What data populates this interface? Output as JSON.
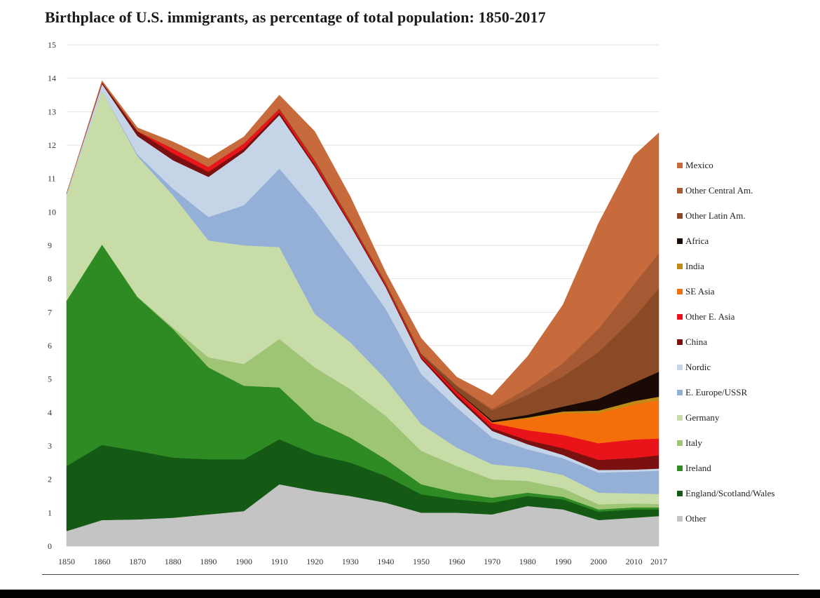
{
  "chart_data": {
    "type": "area",
    "title": "Birthplace of U.S. immigrants, as percentage of total population: 1850-2017",
    "xlabel": "",
    "ylabel": "",
    "x": [
      1850,
      1860,
      1870,
      1880,
      1890,
      1900,
      1910,
      1920,
      1930,
      1940,
      1950,
      1960,
      1970,
      1980,
      1990,
      2000,
      2010,
      2017
    ],
    "x_tick_labels": [
      "1850",
      "1860",
      "1870",
      "1880",
      "1890",
      "1900",
      "1910",
      "1920",
      "1930",
      "1940",
      "1950",
      "1960",
      "1970",
      "1980",
      "1990",
      "2000",
      "2010",
      "2017"
    ],
    "ylim": [
      0,
      15
    ],
    "y_ticks": [
      "0",
      "1",
      "2",
      "3",
      "4",
      "5",
      "6",
      "7",
      "8",
      "9",
      "10",
      "11",
      "12",
      "13",
      "14",
      "15"
    ],
    "grid": true,
    "legend_position": "right",
    "series": [
      {
        "name": "Other",
        "color": "#c4c4c4",
        "values": [
          0.45,
          0.78,
          0.8,
          0.85,
          0.95,
          1.05,
          1.85,
          1.65,
          1.5,
          1.3,
          1.0,
          1.0,
          0.95,
          1.2,
          1.1,
          0.78,
          0.85,
          0.9
        ]
      },
      {
        "name": "England/Scotland/Wales",
        "color": "#145a14",
        "values": [
          1.95,
          2.25,
          2.05,
          1.8,
          1.65,
          1.55,
          1.35,
          1.1,
          1.0,
          0.8,
          0.55,
          0.4,
          0.35,
          0.3,
          0.3,
          0.25,
          0.25,
          0.2
        ]
      },
      {
        "name": "Ireland",
        "color": "#2e8a22",
        "values": [
          4.95,
          6.0,
          4.6,
          3.85,
          2.75,
          2.2,
          1.55,
          1.0,
          0.75,
          0.5,
          0.3,
          0.2,
          0.15,
          0.1,
          0.08,
          0.07,
          0.06,
          0.06
        ]
      },
      {
        "name": "Italy",
        "color": "#9ec476",
        "values": [
          0.0,
          0.0,
          0.02,
          0.05,
          0.3,
          0.65,
          1.45,
          1.6,
          1.45,
          1.3,
          1.0,
          0.8,
          0.55,
          0.35,
          0.25,
          0.15,
          0.12,
          0.1
        ]
      },
      {
        "name": "Germany",
        "color": "#c8dca8",
        "values": [
          3.15,
          4.6,
          4.2,
          3.95,
          3.5,
          3.55,
          2.75,
          1.6,
          1.4,
          1.1,
          0.8,
          0.55,
          0.45,
          0.4,
          0.4,
          0.35,
          0.3,
          0.3
        ]
      },
      {
        "name": "E. Europe/USSR",
        "color": "#94b0d6",
        "values": [
          0.0,
          0.0,
          0.05,
          0.2,
          0.7,
          1.2,
          2.35,
          3.1,
          2.5,
          2.1,
          1.5,
          1.2,
          0.8,
          0.55,
          0.5,
          0.6,
          0.65,
          0.7
        ]
      },
      {
        "name": "Nordic",
        "color": "#c6d4e8",
        "values": [
          0.05,
          0.2,
          0.55,
          0.85,
          1.2,
          1.6,
          1.6,
          1.3,
          1.0,
          0.65,
          0.45,
          0.3,
          0.2,
          0.15,
          0.1,
          0.08,
          0.06,
          0.06
        ]
      },
      {
        "name": "China",
        "color": "#7a1010",
        "values": [
          0.0,
          0.05,
          0.15,
          0.2,
          0.15,
          0.1,
          0.08,
          0.06,
          0.05,
          0.04,
          0.05,
          0.08,
          0.08,
          0.12,
          0.2,
          0.3,
          0.35,
          0.4
        ]
      },
      {
        "name": "Other E. Asia",
        "color": "#e8141a",
        "values": [
          0.0,
          0.0,
          0.0,
          0.15,
          0.15,
          0.15,
          0.1,
          0.1,
          0.06,
          0.05,
          0.06,
          0.1,
          0.15,
          0.3,
          0.4,
          0.5,
          0.55,
          0.5
        ]
      },
      {
        "name": "SE Asia",
        "color": "#f56e0c",
        "values": [
          0.0,
          0.0,
          0.0,
          0.0,
          0.0,
          0.0,
          0.0,
          0.0,
          0.0,
          0.0,
          0.0,
          0.0,
          0.02,
          0.35,
          0.65,
          0.9,
          1.05,
          1.15
        ]
      },
      {
        "name": "India",
        "color": "#c08a18",
        "values": [
          0.0,
          0.0,
          0.0,
          0.0,
          0.0,
          0.0,
          0.0,
          0.0,
          0.0,
          0.0,
          0.0,
          0.0,
          0.01,
          0.03,
          0.05,
          0.08,
          0.1,
          0.1
        ]
      },
      {
        "name": "Africa",
        "color": "#1a0a06",
        "values": [
          0.0,
          0.0,
          0.0,
          0.0,
          0.0,
          0.0,
          0.0,
          0.0,
          0.0,
          0.0,
          0.01,
          0.02,
          0.05,
          0.08,
          0.15,
          0.35,
          0.55,
          0.75
        ]
      },
      {
        "name": "Other Latin Am.",
        "color": "#8a4a26",
        "values": [
          0.0,
          0.0,
          0.0,
          0.0,
          0.0,
          0.0,
          0.02,
          0.05,
          0.05,
          0.05,
          0.05,
          0.15,
          0.3,
          0.6,
          0.9,
          1.4,
          1.95,
          2.5
        ]
      },
      {
        "name": "Other Central Am.",
        "color": "#a65a33",
        "values": [
          0.0,
          0.0,
          0.0,
          0.0,
          0.0,
          0.0,
          0.0,
          0.0,
          0.0,
          0.0,
          0.0,
          0.01,
          0.05,
          0.2,
          0.4,
          0.7,
          1.0,
          1.05
        ]
      },
      {
        "name": "Mexico",
        "color": "#c76b3c",
        "values": [
          0.0,
          0.05,
          0.1,
          0.2,
          0.25,
          0.2,
          0.4,
          0.85,
          0.7,
          0.3,
          0.45,
          0.25,
          0.4,
          0.95,
          1.75,
          3.15,
          3.85,
          3.6
        ]
      }
    ]
  }
}
